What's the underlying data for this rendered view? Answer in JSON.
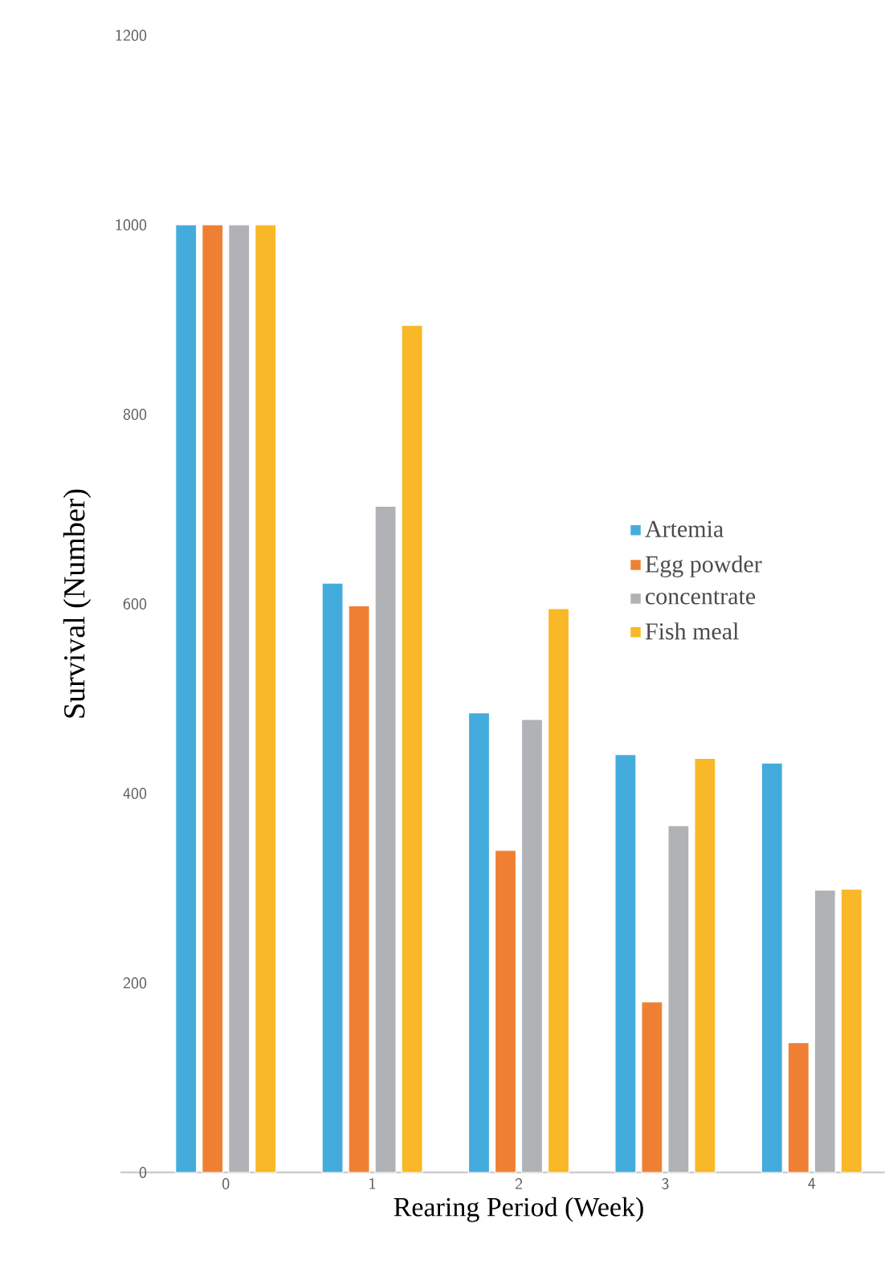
{
  "chart_data": {
    "type": "bar",
    "xlabel": "Rearing Period (Week)",
    "ylabel": "Survival (Number)",
    "categories": [
      "0",
      "1",
      "2",
      "3",
      "4"
    ],
    "series": [
      {
        "name": "Artemia",
        "color": "#44acdc",
        "values": [
          1000,
          622,
          485,
          441,
          432
        ]
      },
      {
        "name": "Egg powder",
        "color": "#ef8033",
        "values": [
          1000,
          598,
          340,
          180,
          137
        ]
      },
      {
        "name": "concentrate",
        "color": "#b1b2b5",
        "values": [
          1000,
          703,
          478,
          366,
          298
        ]
      },
      {
        "name": "Fish meal",
        "color": "#f8b827",
        "values": [
          1000,
          894,
          595,
          437,
          299
        ]
      }
    ],
    "ylim": [
      0,
      1200
    ],
    "yticks": [
      0,
      200,
      400,
      600,
      800,
      1000,
      1200
    ],
    "grid": false,
    "legend": "right"
  }
}
